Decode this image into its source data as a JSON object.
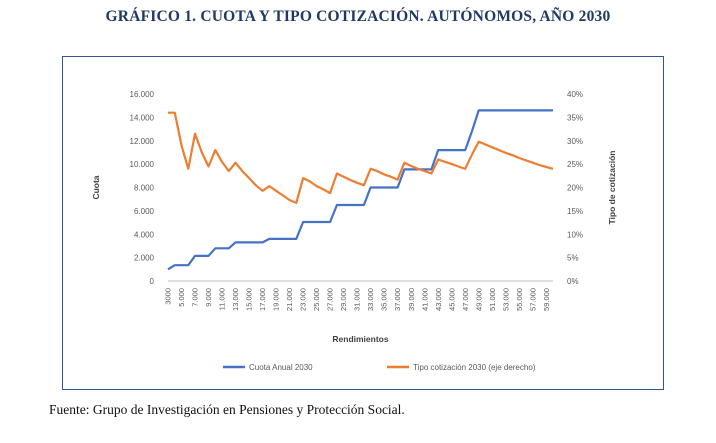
{
  "title": "GRÁFICO 1. CUOTA Y TIPO COTIZACIÓN. AUTÓNOMOS, AÑO 2030",
  "source": "Fuente: Grupo de Investigación en Pensiones y Protección Social.",
  "chart_data": {
    "type": "line",
    "xlabel": "Rendimientos",
    "ylabel": "Cuota",
    "y2label": "Tipo de cotización",
    "ylim": [
      0,
      16000
    ],
    "y2lim": [
      0,
      40
    ],
    "y_ticks": [
      "0",
      "2.000",
      "4.000",
      "6.000",
      "8.000",
      "10.000",
      "12.000",
      "14.000",
      "16.000"
    ],
    "y2_ticks": [
      "0%",
      "5%",
      "10%",
      "15%",
      "20%",
      "25%",
      "30%",
      "35%",
      "40%"
    ],
    "x_tick_labels": [
      "3000",
      "5.000",
      "7.000",
      "9.000",
      "11.000",
      "13.000",
      "15.000",
      "17.000",
      "19.000",
      "21.000",
      "23.000",
      "25.000",
      "27.000",
      "29.000",
      "31.000",
      "33.000",
      "35.000",
      "37.000",
      "39.000",
      "41.000",
      "43.000",
      "45.000",
      "47.000",
      "49.000",
      "51.000",
      "53.000",
      "55.000",
      "57.000",
      "59.000"
    ],
    "xlim": [
      3000,
      60000
    ],
    "grid": false,
    "legend_position": "bottom",
    "series": [
      {
        "name": "Cuota Anual 2030",
        "axis": "left",
        "color": "#4472c4",
        "points": [
          [
            3000,
            1000
          ],
          [
            4000,
            1350
          ],
          [
            5000,
            1350
          ],
          [
            6000,
            1350
          ],
          [
            7000,
            2150
          ],
          [
            8000,
            2150
          ],
          [
            9000,
            2150
          ],
          [
            10000,
            2800
          ],
          [
            11000,
            2800
          ],
          [
            12000,
            2800
          ],
          [
            13000,
            3300
          ],
          [
            14000,
            3300
          ],
          [
            15000,
            3300
          ],
          [
            16000,
            3300
          ],
          [
            17000,
            3300
          ],
          [
            18000,
            3600
          ],
          [
            19000,
            3600
          ],
          [
            20000,
            3600
          ],
          [
            21000,
            3600
          ],
          [
            22000,
            3600
          ],
          [
            23000,
            5050
          ],
          [
            24000,
            5050
          ],
          [
            25000,
            5050
          ],
          [
            26000,
            5050
          ],
          [
            27000,
            5050
          ],
          [
            28000,
            6500
          ],
          [
            29000,
            6500
          ],
          [
            30000,
            6500
          ],
          [
            31000,
            6500
          ],
          [
            32000,
            6500
          ],
          [
            33000,
            8000
          ],
          [
            34000,
            8000
          ],
          [
            35000,
            8000
          ],
          [
            36000,
            8000
          ],
          [
            37000,
            8000
          ],
          [
            38000,
            9550
          ],
          [
            39000,
            9550
          ],
          [
            40000,
            9550
          ],
          [
            41000,
            9550
          ],
          [
            42000,
            9550
          ],
          [
            43000,
            11200
          ],
          [
            44000,
            11200
          ],
          [
            45000,
            11200
          ],
          [
            46000,
            11200
          ],
          [
            47000,
            11200
          ],
          [
            48000,
            12800
          ],
          [
            49000,
            14600
          ],
          [
            50000,
            14600
          ],
          [
            51000,
            14600
          ],
          [
            52000,
            14600
          ],
          [
            53000,
            14600
          ],
          [
            54000,
            14600
          ],
          [
            55000,
            14600
          ],
          [
            56000,
            14600
          ],
          [
            57000,
            14600
          ],
          [
            58000,
            14600
          ],
          [
            59000,
            14600
          ],
          [
            60000,
            14600
          ]
        ]
      },
      {
        "name": "Tipo cotización 2030 (eje derecho)",
        "axis": "right",
        "color": "#ed7d31",
        "points": [
          [
            3000,
            36
          ],
          [
            4000,
            36
          ],
          [
            5000,
            29
          ],
          [
            6000,
            24
          ],
          [
            7000,
            31.5
          ],
          [
            8000,
            27.5
          ],
          [
            9000,
            24.5
          ],
          [
            10000,
            28
          ],
          [
            11000,
            25.5
          ],
          [
            12000,
            23.5
          ],
          [
            13000,
            25.3
          ],
          [
            14000,
            23.5
          ],
          [
            15000,
            22
          ],
          [
            16000,
            20.5
          ],
          [
            17000,
            19.3
          ],
          [
            18000,
            20.3
          ],
          [
            19000,
            19.3
          ],
          [
            20000,
            18.3
          ],
          [
            21000,
            17.3
          ],
          [
            22000,
            16.7
          ],
          [
            23000,
            22
          ],
          [
            24000,
            21.3
          ],
          [
            25000,
            20.3
          ],
          [
            26000,
            19.6
          ],
          [
            27000,
            18.8
          ],
          [
            28000,
            23
          ],
          [
            29000,
            22.3
          ],
          [
            30000,
            21.6
          ],
          [
            31000,
            21
          ],
          [
            32000,
            20.5
          ],
          [
            33000,
            24
          ],
          [
            34000,
            23.5
          ],
          [
            35000,
            22.8
          ],
          [
            36000,
            22.3
          ],
          [
            37000,
            21.7
          ],
          [
            38000,
            25.3
          ],
          [
            39000,
            24.6
          ],
          [
            40000,
            24
          ],
          [
            41000,
            23.5
          ],
          [
            42000,
            23
          ],
          [
            43000,
            26
          ],
          [
            44000,
            25.5
          ],
          [
            45000,
            25
          ],
          [
            46000,
            24.5
          ],
          [
            47000,
            24
          ],
          [
            48000,
            27
          ],
          [
            49000,
            29.8
          ],
          [
            50000,
            29.2
          ],
          [
            51000,
            28.6
          ],
          [
            52000,
            28
          ],
          [
            53000,
            27.4
          ],
          [
            54000,
            26.9
          ],
          [
            55000,
            26.3
          ],
          [
            56000,
            25.8
          ],
          [
            57000,
            25.3
          ],
          [
            58000,
            24.8
          ],
          [
            59000,
            24.4
          ],
          [
            60000,
            24
          ]
        ]
      }
    ]
  }
}
